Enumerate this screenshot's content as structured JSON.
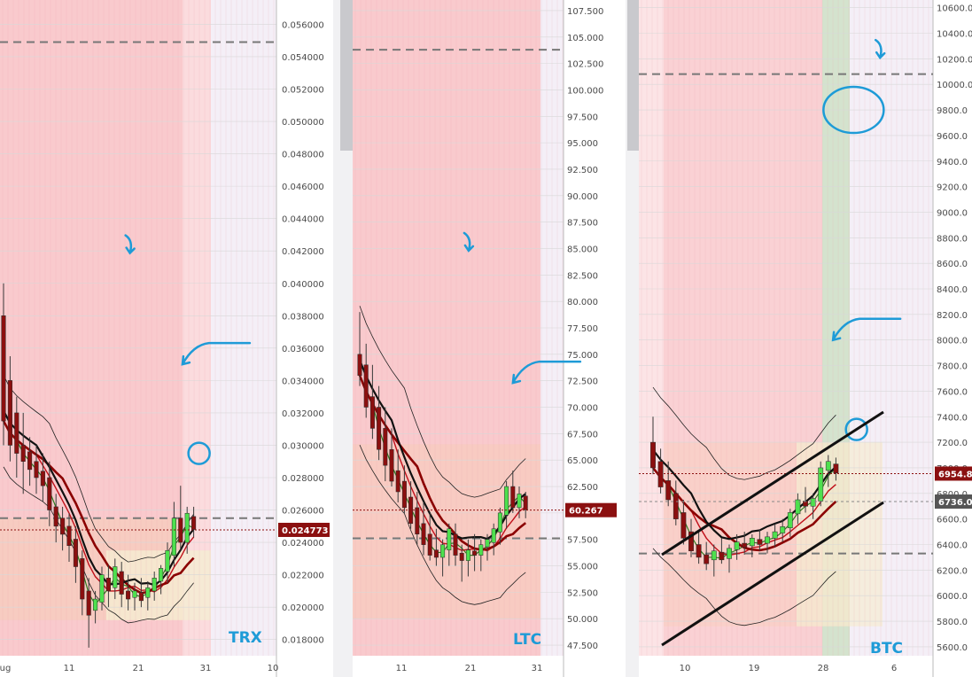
{
  "colors": {
    "pink_zone": "#f8c4c8",
    "orange_zone": "#f6cdb5",
    "yellow_zone": "#f5edd2",
    "green_zone": "#cfe0c9",
    "lavender_zone": "#efe8f4",
    "dashed_level": "#777777",
    "annotation_blue": "#1e9bd7",
    "candle_up": "#4ee04e",
    "candle_down": "#8b0f0f",
    "price_tag_bg": "#8b1010",
    "secondary_tag_bg": "#555555",
    "axis_text": "#4a4a4a"
  },
  "chart_data": [
    {
      "type": "candlestick",
      "title": "TRX",
      "x_tick_labels": [
        "ug",
        "11",
        "21",
        "31",
        "10"
      ],
      "y_ticks": [
        0.018,
        0.02,
        0.022,
        0.024,
        0.026,
        0.028,
        0.03,
        0.032,
        0.034,
        0.036,
        0.038,
        0.04,
        0.042,
        0.044,
        0.046,
        0.048,
        0.05,
        0.052,
        0.054,
        0.056
      ],
      "y_tick_labels": [
        "0.018000",
        "0.020000",
        "0.022000",
        "0.024000",
        "0.026000",
        "0.028000",
        "0.030000",
        "0.032000",
        "0.034000",
        "0.036000",
        "0.038000",
        "0.040000",
        "0.042000",
        "0.044000",
        "0.046000",
        "0.048000",
        "0.050000",
        "0.052000",
        "0.054000",
        "0.056000"
      ],
      "ylim": [
        0.017,
        0.0575
      ],
      "current_price": 0.024773,
      "current_price_label": "0.024773",
      "dashed_levels": [
        0.0549,
        0.0255
      ],
      "candles": [
        {
          "o": 0.038,
          "h": 0.04,
          "l": 0.03,
          "c": 0.0315
        },
        {
          "o": 0.034,
          "h": 0.0355,
          "l": 0.029,
          "c": 0.03
        },
        {
          "o": 0.032,
          "h": 0.033,
          "l": 0.028,
          "c": 0.0295
        },
        {
          "o": 0.03,
          "h": 0.032,
          "l": 0.027,
          "c": 0.029
        },
        {
          "o": 0.0296,
          "h": 0.0305,
          "l": 0.0275,
          "c": 0.0285
        },
        {
          "o": 0.029,
          "h": 0.03,
          "l": 0.027,
          "c": 0.028
        },
        {
          "o": 0.0284,
          "h": 0.0295,
          "l": 0.0265,
          "c": 0.0275
        },
        {
          "o": 0.028,
          "h": 0.029,
          "l": 0.025,
          "c": 0.026
        },
        {
          "o": 0.0262,
          "h": 0.027,
          "l": 0.024,
          "c": 0.025
        },
        {
          "o": 0.0255,
          "h": 0.0262,
          "l": 0.0235,
          "c": 0.0245
        },
        {
          "o": 0.025,
          "h": 0.0258,
          "l": 0.0228,
          "c": 0.0238
        },
        {
          "o": 0.0242,
          "h": 0.025,
          "l": 0.0215,
          "c": 0.0225
        },
        {
          "o": 0.023,
          "h": 0.0235,
          "l": 0.0195,
          "c": 0.0205
        },
        {
          "o": 0.021,
          "h": 0.0218,
          "l": 0.0175,
          "c": 0.0195
        },
        {
          "o": 0.0198,
          "h": 0.021,
          "l": 0.019,
          "c": 0.0205
        },
        {
          "o": 0.0203,
          "h": 0.0225,
          "l": 0.0198,
          "c": 0.022
        },
        {
          "o": 0.0218,
          "h": 0.0226,
          "l": 0.02,
          "c": 0.021
        },
        {
          "o": 0.0212,
          "h": 0.023,
          "l": 0.0205,
          "c": 0.0225
        },
        {
          "o": 0.0222,
          "h": 0.0228,
          "l": 0.02,
          "c": 0.0208
        },
        {
          "o": 0.021,
          "h": 0.022,
          "l": 0.0198,
          "c": 0.0205
        },
        {
          "o": 0.0206,
          "h": 0.0215,
          "l": 0.0198,
          "c": 0.021
        },
        {
          "o": 0.0209,
          "h": 0.0218,
          "l": 0.02,
          "c": 0.0204
        },
        {
          "o": 0.0206,
          "h": 0.0216,
          "l": 0.0198,
          "c": 0.0212
        },
        {
          "o": 0.021,
          "h": 0.0222,
          "l": 0.0204,
          "c": 0.0218
        },
        {
          "o": 0.0216,
          "h": 0.0226,
          "l": 0.0208,
          "c": 0.0224
        },
        {
          "o": 0.0222,
          "h": 0.024,
          "l": 0.0215,
          "c": 0.0235
        },
        {
          "o": 0.0232,
          "h": 0.0265,
          "l": 0.0225,
          "c": 0.0255
        },
        {
          "o": 0.0255,
          "h": 0.0275,
          "l": 0.0235,
          "c": 0.024
        },
        {
          "o": 0.024,
          "h": 0.0262,
          "l": 0.0233,
          "c": 0.0258
        },
        {
          "o": 0.0256,
          "h": 0.0262,
          "l": 0.0243,
          "c": 0.0248
        }
      ],
      "annotations": [
        {
          "type": "arrow",
          "label": "down arrow",
          "x": 0.47,
          "y": 0.0422
        },
        {
          "type": "arrow",
          "label": "left arrow",
          "x": 0.66,
          "y": 0.035
        },
        {
          "type": "circle",
          "x": 0.72,
          "y": 0.0295
        }
      ]
    },
    {
      "type": "candlestick",
      "title": "LTC",
      "x_tick_labels": [
        "11",
        "21",
        "31"
      ],
      "y_ticks": [
        47.5,
        50,
        52.5,
        55,
        57.5,
        60,
        62.5,
        65,
        67.5,
        70,
        72.5,
        75,
        77.5,
        80,
        82.5,
        85,
        87.5,
        90,
        92.5,
        95,
        97.5,
        100,
        102.5,
        105,
        107.5
      ],
      "y_tick_labels": [
        "47.500",
        "50.000",
        "52.500",
        "55.000",
        "57.500",
        "60.000",
        "62.500",
        "65.000",
        "67.500",
        "70.000",
        "72.500",
        "75.000",
        "77.500",
        "80.000",
        "82.500",
        "85.000",
        "87.500",
        "90.000",
        "92.500",
        "95.000",
        "97.500",
        "100.000",
        "102.500",
        "105.000",
        "107.500"
      ],
      "ylim": [
        46.5,
        108.5
      ],
      "current_price": 60.267,
      "current_price_label": "60.267",
      "dashed_levels": [
        103.8,
        57.6
      ],
      "candles": [
        {
          "o": 75.0,
          "h": 79.0,
          "l": 72.0,
          "c": 73.0
        },
        {
          "o": 74.0,
          "h": 76.0,
          "l": 69.0,
          "c": 70.0
        },
        {
          "o": 71.0,
          "h": 74.0,
          "l": 67.0,
          "c": 68.0
        },
        {
          "o": 70.0,
          "h": 72.0,
          "l": 65.0,
          "c": 66.0
        },
        {
          "o": 68.0,
          "h": 70.0,
          "l": 63.0,
          "c": 64.5
        },
        {
          "o": 66.0,
          "h": 68.0,
          "l": 62.5,
          "c": 63.0
        },
        {
          "o": 64.0,
          "h": 66.0,
          "l": 61.0,
          "c": 62.0
        },
        {
          "o": 63.0,
          "h": 64.5,
          "l": 60.0,
          "c": 60.5
        },
        {
          "o": 61.5,
          "h": 63.0,
          "l": 58.5,
          "c": 59.0
        },
        {
          "o": 60.5,
          "h": 62.0,
          "l": 57.0,
          "c": 58.0
        },
        {
          "o": 59.0,
          "h": 61.0,
          "l": 56.0,
          "c": 57.0
        },
        {
          "o": 58.0,
          "h": 60.0,
          "l": 55.5,
          "c": 56.0
        },
        {
          "o": 56.5,
          "h": 58.5,
          "l": 55.0,
          "c": 55.8
        },
        {
          "o": 55.8,
          "h": 57.5,
          "l": 54.0,
          "c": 57.0
        },
        {
          "o": 56.5,
          "h": 59.0,
          "l": 55.0,
          "c": 58.5
        },
        {
          "o": 58.0,
          "h": 59.0,
          "l": 55.0,
          "c": 56.0
        },
        {
          "o": 56.2,
          "h": 57.0,
          "l": 53.5,
          "c": 55.5
        },
        {
          "o": 55.5,
          "h": 57.5,
          "l": 54.0,
          "c": 56.5
        },
        {
          "o": 56.4,
          "h": 58.0,
          "l": 54.5,
          "c": 56.0
        },
        {
          "o": 56.0,
          "h": 57.5,
          "l": 54.5,
          "c": 57.0
        },
        {
          "o": 56.8,
          "h": 58.0,
          "l": 55.5,
          "c": 57.5
        },
        {
          "o": 57.2,
          "h": 59.0,
          "l": 56.0,
          "c": 58.5
        },
        {
          "o": 58.2,
          "h": 60.5,
          "l": 57.0,
          "c": 60.0
        },
        {
          "o": 59.8,
          "h": 63.0,
          "l": 58.5,
          "c": 62.5
        },
        {
          "o": 62.5,
          "h": 64.0,
          "l": 60.0,
          "c": 60.5
        },
        {
          "o": 60.5,
          "h": 62.5,
          "l": 59.5,
          "c": 61.8
        },
        {
          "o": 61.6,
          "h": 62.0,
          "l": 59.5,
          "c": 60.3
        }
      ],
      "annotations": [
        {
          "type": "arrow",
          "label": "down arrow",
          "x": 0.55,
          "y": 85.3
        },
        {
          "type": "arrow",
          "label": "left arrow",
          "x": 0.76,
          "y": 72.3
        }
      ]
    },
    {
      "type": "candlestick",
      "title": "BTC",
      "x_tick_labels": [
        "10",
        "19",
        "28",
        "6"
      ],
      "y_ticks": [
        5600,
        5800,
        6000,
        6200,
        6400,
        6600,
        6800,
        7000,
        7200,
        7400,
        7600,
        7800,
        8000,
        8200,
        8400,
        8600,
        8800,
        9000,
        9200,
        9400,
        9600,
        9800,
        10000,
        10200,
        10400,
        10600
      ],
      "y_tick_labels": [
        "5600.0",
        "5800.0",
        "6000.0",
        "6200.0",
        "6400.0",
        "6600.0",
        "6800.0",
        "7000.0",
        "7200.0",
        "7400.0",
        "7600.0",
        "7800.0",
        "8000.0",
        "8200.0",
        "8400.0",
        "8600.0",
        "8800.0",
        "9000.0",
        "9200.0",
        "9400.0",
        "9600.0",
        "9800.0",
        "10000.0",
        "10200.0",
        "10400.0",
        "10600.0"
      ],
      "ylim": [
        5530,
        10660
      ],
      "current_price": 6954.8,
      "current_price_label": "6954.8",
      "secondary_price": 6736.0,
      "secondary_price_label": "6736.0",
      "dashed_levels": [
        10080,
        6330
      ],
      "candles": [
        {
          "o": 7200,
          "h": 7400,
          "l": 6950,
          "c": 7000
        },
        {
          "o": 7050,
          "h": 7150,
          "l": 6800,
          "c": 6850
        },
        {
          "o": 6900,
          "h": 7050,
          "l": 6700,
          "c": 6750
        },
        {
          "o": 6800,
          "h": 6900,
          "l": 6550,
          "c": 6600
        },
        {
          "o": 6650,
          "h": 6750,
          "l": 6400,
          "c": 6450
        },
        {
          "o": 6500,
          "h": 6600,
          "l": 6300,
          "c": 6350
        },
        {
          "o": 6400,
          "h": 6500,
          "l": 6250,
          "c": 6300
        },
        {
          "o": 6320,
          "h": 6420,
          "l": 6200,
          "c": 6250
        },
        {
          "o": 6280,
          "h": 6400,
          "l": 6150,
          "c": 6350
        },
        {
          "o": 6340,
          "h": 6450,
          "l": 6250,
          "c": 6280
        },
        {
          "o": 6290,
          "h": 6400,
          "l": 6180,
          "c": 6370
        },
        {
          "o": 6360,
          "h": 6480,
          "l": 6280,
          "c": 6420
        },
        {
          "o": 6410,
          "h": 6500,
          "l": 6320,
          "c": 6380
        },
        {
          "o": 6390,
          "h": 6480,
          "l": 6300,
          "c": 6450
        },
        {
          "o": 6440,
          "h": 6520,
          "l": 6350,
          "c": 6400
        },
        {
          "o": 6410,
          "h": 6500,
          "l": 6330,
          "c": 6460
        },
        {
          "o": 6450,
          "h": 6560,
          "l": 6380,
          "c": 6500
        },
        {
          "o": 6490,
          "h": 6600,
          "l": 6420,
          "c": 6540
        },
        {
          "o": 6530,
          "h": 6680,
          "l": 6460,
          "c": 6650
        },
        {
          "o": 6640,
          "h": 6800,
          "l": 6560,
          "c": 6750
        },
        {
          "o": 6740,
          "h": 6850,
          "l": 6650,
          "c": 6700
        },
        {
          "o": 6700,
          "h": 6800,
          "l": 6600,
          "c": 6760
        },
        {
          "o": 6740,
          "h": 7050,
          "l": 6700,
          "c": 7000
        },
        {
          "o": 6980,
          "h": 7100,
          "l": 6850,
          "c": 7050
        },
        {
          "o": 7030,
          "h": 7080,
          "l": 6900,
          "c": 6960
        }
      ],
      "annotations": [
        {
          "type": "circle",
          "x": 0.73,
          "y": 9800
        },
        {
          "type": "arrow",
          "label": "down arrow",
          "x": 0.82,
          "y": 10250
        },
        {
          "type": "arrow",
          "label": "left arrow",
          "x": 0.66,
          "y": 8000
        },
        {
          "type": "circle",
          "x": 0.74,
          "y": 7300
        }
      ]
    }
  ]
}
